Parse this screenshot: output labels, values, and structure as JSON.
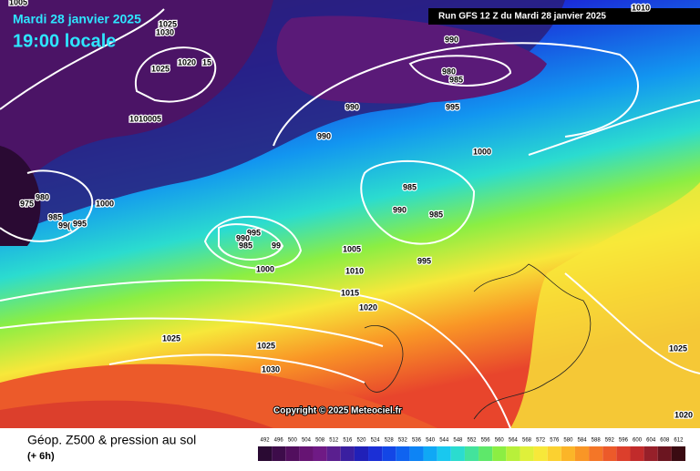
{
  "header": {
    "date": "Mardi 28 janvier 2025",
    "time": "19:00 locale",
    "run": "Run GFS 12 Z du Mardi 28 janvier 2025"
  },
  "isobar_labels": [
    "1005",
    "1025",
    "1030",
    "1020",
    "15",
    "1025",
    "1010005",
    "990",
    "980",
    "985",
    "995",
    "990",
    "990",
    "1000",
    "985",
    "990",
    "985",
    "1000",
    "980",
    "975",
    "985",
    "995",
    "99(",
    "995",
    "990",
    "985",
    "99",
    "1000",
    "1005",
    "1010",
    "995",
    "1015",
    "1020",
    "1025",
    "1025",
    "1030",
    "1025",
    "1020",
    "1010"
  ],
  "copyright": "Copyright © 2025 Meteociel.fr",
  "footer": {
    "title": "Géop. Z500 & pression au sol",
    "subtitle": "(+ 6h)"
  },
  "legend": {
    "labels": [
      "492",
      "496",
      "500",
      "504",
      "508",
      "512",
      "516",
      "520",
      "524",
      "528",
      "532",
      "536",
      "540",
      "544",
      "548",
      "552",
      "556",
      "560",
      "564",
      "568",
      "572",
      "576",
      "580",
      "584",
      "588",
      "592",
      "596",
      "600",
      "604",
      "608",
      "612"
    ],
    "colors": [
      "#2a0a33",
      "#3d0c4a",
      "#520f5e",
      "#661473",
      "#6f1a85",
      "#5a1f8f",
      "#3a1fa0",
      "#2020b8",
      "#1b2fd6",
      "#1346e6",
      "#0f63f0",
      "#0d84f5",
      "#10a8f5",
      "#19c8ef",
      "#2bdccf",
      "#43e39c",
      "#5ee86a",
      "#8bee43",
      "#b8f03a",
      "#dff03a",
      "#f7e83a",
      "#fbd130",
      "#fbb528",
      "#f99626",
      "#f47627",
      "#ec5a2a",
      "#dc3f2c",
      "#c12b2b",
      "#97202a",
      "#6b1520",
      "#3a0b12"
    ]
  }
}
